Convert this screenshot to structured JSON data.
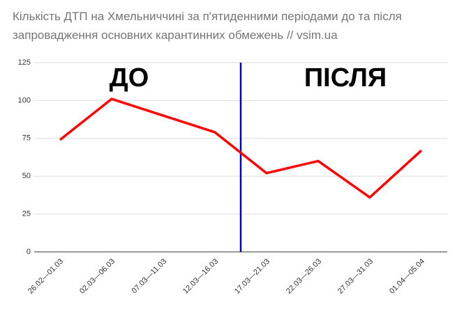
{
  "chart_data": {
    "type": "line",
    "title": "Кількість ДТП на Хмельниччині за п'ятиденними періодами до та після запровадження основних карантинних обмежень // vsim.ua",
    "categories": [
      "26.02—01.03",
      "02.03—06.03",
      "07.03—11.03",
      "12.03—16.03",
      "17.03—21.03",
      "22.03—26.03",
      "27.03—31.03",
      "01.04—05.04"
    ],
    "values": [
      74,
      101,
      90,
      79,
      52,
      60,
      36,
      67
    ],
    "color": "#ff0000",
    "ylim": [
      0,
      125
    ],
    "yticks": [
      0,
      25,
      50,
      75,
      100,
      125
    ],
    "grid": true,
    "annotations": [
      "ДО",
      "ПІСЛЯ"
    ]
  }
}
